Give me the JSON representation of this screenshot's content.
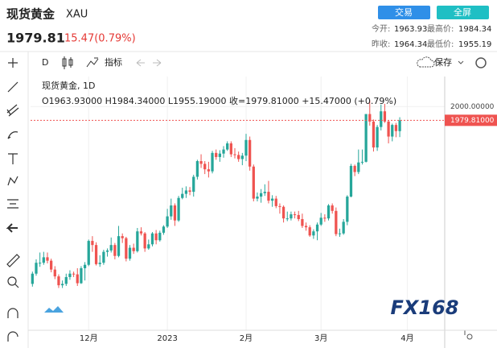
{
  "header": {
    "title": "现货黄金",
    "symbol": "XAU",
    "buttons": [
      "交易",
      "全屏"
    ],
    "stats": [
      [
        "今开:",
        "1963.93"
      ],
      [
        "最高价:",
        "1984.34"
      ],
      [
        "昨收:",
        "1964.34"
      ],
      [
        "最低价:",
        "1955.19"
      ]
    ],
    "price": "1979.81",
    "change": "15.47(0.79%)"
  },
  "toolbar": {
    "interval": "D",
    "indicators": "指标",
    "save": "保存"
  },
  "chart_data": {
    "type": "candlestick",
    "legend_title": "现货黄金, 1D",
    "legend_ohlc": "O1963.93000 H1984.34000 L1955.19000 收=1979.81000 +15.47000 (+0.79%)",
    "up_color": "#26a69a",
    "down_color": "#ef5350",
    "ylim": [
      1672,
      2044
    ],
    "yticks": [
      {
        "value": 2000,
        "label": "2000.00000"
      }
    ],
    "xlim": [
      -0.5,
      110
    ],
    "xticks": [
      {
        "value": 15,
        "label": "12月"
      },
      {
        "value": 36,
        "label": "2023"
      },
      {
        "value": 57,
        "label": "2月"
      },
      {
        "value": 77,
        "label": "3月"
      },
      {
        "value": 100,
        "label": "4月"
      }
    ],
    "last_label": "1979.81000",
    "watermark": "FX168",
    "ohlc": [
      [
        1740,
        1758,
        1736,
        1755
      ],
      [
        1755,
        1776,
        1752,
        1771
      ],
      [
        1771,
        1786,
        1765,
        1771
      ],
      [
        1771,
        1787,
        1768,
        1779
      ],
      [
        1779,
        1786,
        1770,
        1774
      ],
      [
        1774,
        1777,
        1757,
        1761
      ],
      [
        1761,
        1766,
        1747,
        1751
      ],
      [
        1751,
        1754,
        1734,
        1738
      ],
      [
        1738,
        1745,
        1734,
        1740
      ],
      [
        1740,
        1755,
        1737,
        1750
      ],
      [
        1750,
        1760,
        1746,
        1755
      ],
      [
        1755,
        1758,
        1750,
        1754
      ],
      [
        1754,
        1763,
        1737,
        1741
      ],
      [
        1741,
        1766,
        1740,
        1763
      ],
      [
        1763,
        1772,
        1745,
        1768
      ],
      [
        1768,
        1805,
        1766,
        1803
      ],
      [
        1803,
        1810,
        1787,
        1797
      ],
      [
        1797,
        1801,
        1767,
        1769
      ],
      [
        1769,
        1782,
        1765,
        1771
      ],
      [
        1771,
        1790,
        1768,
        1787
      ],
      [
        1787,
        1792,
        1780,
        1789
      ],
      [
        1789,
        1808,
        1786,
        1797
      ],
      [
        1797,
        1800,
        1776,
        1781
      ],
      [
        1781,
        1825,
        1779,
        1810
      ],
      [
        1810,
        1814,
        1800,
        1807
      ],
      [
        1807,
        1809,
        1773,
        1777
      ],
      [
        1777,
        1797,
        1774,
        1793
      ],
      [
        1793,
        1799,
        1784,
        1788
      ],
      [
        1788,
        1822,
        1786,
        1817
      ],
      [
        1817,
        1823,
        1811,
        1814
      ],
      [
        1814,
        1816,
        1787,
        1792
      ],
      [
        1792,
        1805,
        1790,
        1798
      ],
      [
        1798,
        1816,
        1795,
        1814
      ],
      [
        1814,
        1819,
        1798,
        1804
      ],
      [
        1804,
        1818,
        1802,
        1815
      ],
      [
        1815,
        1826,
        1812,
        1824
      ],
      [
        1824,
        1850,
        1822,
        1839
      ],
      [
        1839,
        1865,
        1834,
        1855
      ],
      [
        1855,
        1858,
        1825,
        1833
      ],
      [
        1833,
        1869,
        1831,
        1866
      ],
      [
        1866,
        1881,
        1864,
        1872
      ],
      [
        1872,
        1883,
        1866,
        1877
      ],
      [
        1877,
        1882,
        1870,
        1875
      ],
      [
        1875,
        1900,
        1868,
        1897
      ],
      [
        1897,
        1922,
        1893,
        1920
      ],
      [
        1920,
        1930,
        1910,
        1916
      ],
      [
        1916,
        1920,
        1901,
        1908
      ],
      [
        1908,
        1919,
        1896,
        1905
      ],
      [
        1905,
        1935,
        1902,
        1932
      ],
      [
        1932,
        1937,
        1922,
        1926
      ],
      [
        1926,
        1936,
        1919,
        1931
      ],
      [
        1931,
        1942,
        1925,
        1937
      ],
      [
        1937,
        1949,
        1935,
        1946
      ],
      [
        1946,
        1949,
        1926,
        1930
      ],
      [
        1930,
        1939,
        1924,
        1929
      ],
      [
        1929,
        1934,
        1919,
        1923
      ],
      [
        1923,
        1932,
        1914,
        1928
      ],
      [
        1928,
        1960,
        1920,
        1951
      ],
      [
        1951,
        1956,
        1906,
        1912
      ],
      [
        1912,
        1915,
        1861,
        1865
      ],
      [
        1865,
        1874,
        1861,
        1868
      ],
      [
        1868,
        1879,
        1859,
        1873
      ],
      [
        1873,
        1886,
        1869,
        1875
      ],
      [
        1875,
        1891,
        1858,
        1862
      ],
      [
        1862,
        1870,
        1853,
        1865
      ],
      [
        1865,
        1869,
        1851,
        1854
      ],
      [
        1854,
        1858,
        1843,
        1853
      ],
      [
        1853,
        1855,
        1830,
        1836
      ],
      [
        1836,
        1846,
        1832,
        1836
      ],
      [
        1836,
        1846,
        1833,
        1842
      ],
      [
        1842,
        1846,
        1836,
        1841
      ],
      [
        1841,
        1847,
        1832,
        1835
      ],
      [
        1835,
        1843,
        1822,
        1825
      ],
      [
        1825,
        1830,
        1818,
        1823
      ],
      [
        1823,
        1826,
        1809,
        1811
      ],
      [
        1811,
        1820,
        1806,
        1817
      ],
      [
        1817,
        1830,
        1804,
        1827
      ],
      [
        1827,
        1844,
        1825,
        1837
      ],
      [
        1837,
        1842,
        1831,
        1836
      ],
      [
        1836,
        1857,
        1833,
        1855
      ],
      [
        1855,
        1858,
        1843,
        1847
      ],
      [
        1847,
        1852,
        1810,
        1813
      ],
      [
        1813,
        1821,
        1809,
        1814
      ],
      [
        1814,
        1835,
        1812,
        1831
      ],
      [
        1831,
        1870,
        1826,
        1868
      ],
      [
        1868,
        1916,
        1867,
        1913
      ],
      [
        1913,
        1915,
        1898,
        1904
      ],
      [
        1904,
        1937,
        1901,
        1918
      ],
      [
        1918,
        1937,
        1915,
        1919
      ],
      [
        1919,
        1989,
        1918,
        1989
      ],
      [
        1989,
        2009,
        1972,
        1978
      ],
      [
        1978,
        1981,
        1934,
        1940
      ],
      [
        1940,
        1973,
        1935,
        1970
      ],
      [
        1970,
        2003,
        1965,
        1993
      ],
      [
        1993,
        2004,
        1976,
        1978
      ],
      [
        1978,
        1980,
        1946,
        1956
      ],
      [
        1956,
        1975,
        1949,
        1973
      ],
      [
        1973,
        1976,
        1955,
        1964
      ],
      [
        1963.93,
        1984.34,
        1955.19,
        1979.81
      ]
    ]
  }
}
